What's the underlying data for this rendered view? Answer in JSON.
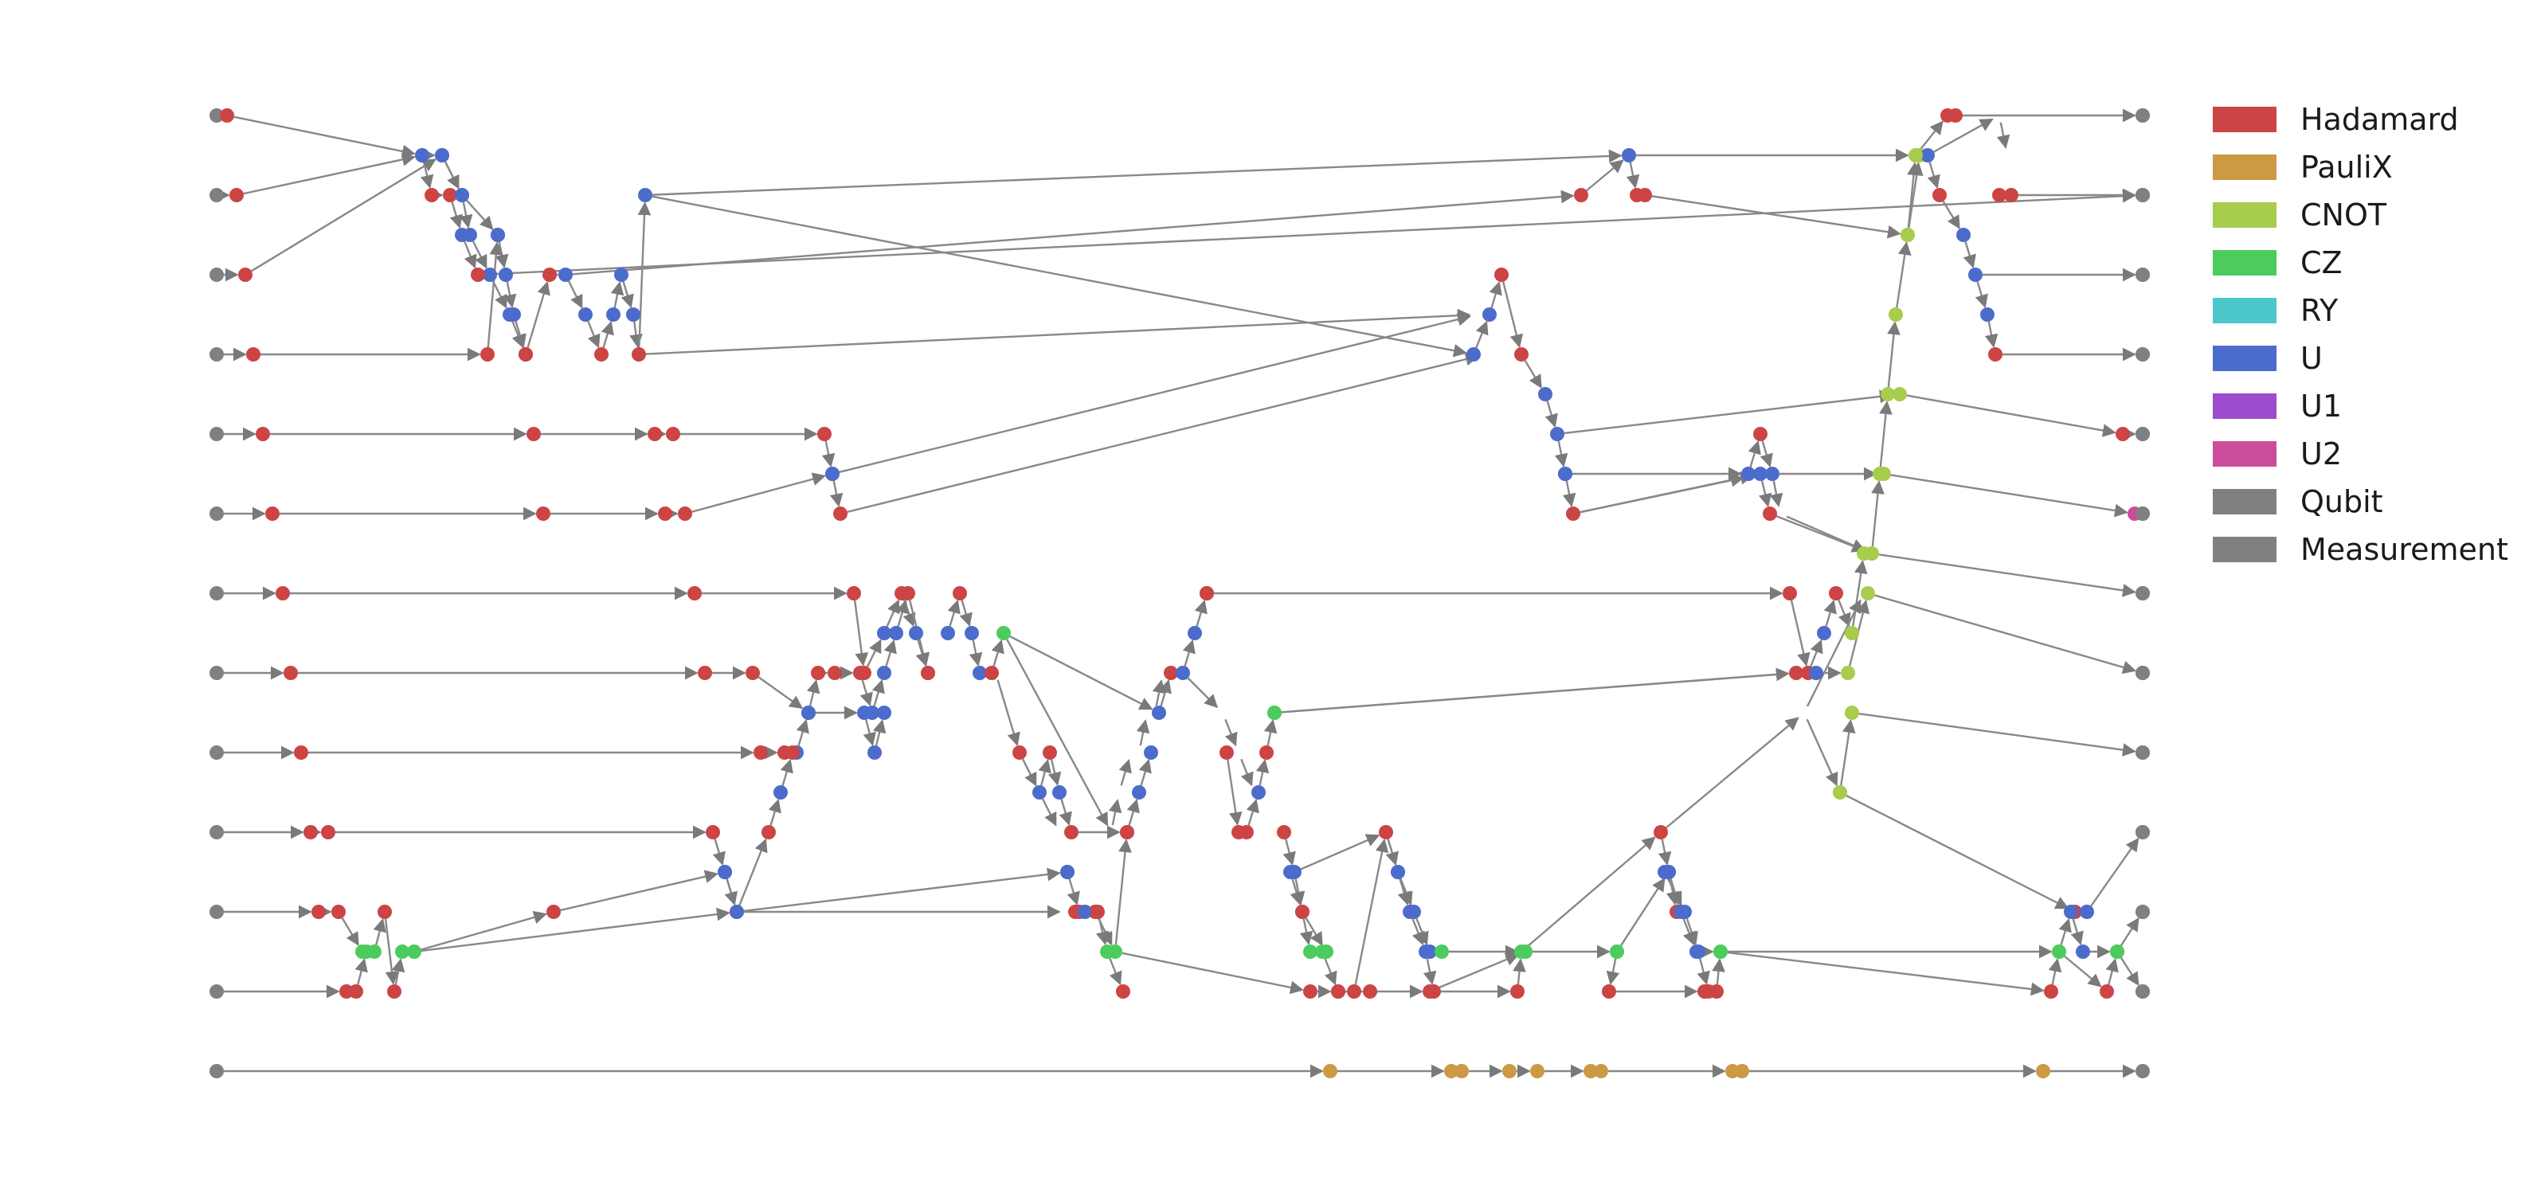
{
  "legend": [
    {
      "label": "Hadamard",
      "color": "#cc4444"
    },
    {
      "label": "PauliX",
      "color": "#cc9944"
    },
    {
      "label": "CNOT",
      "color": "#a8cc4c"
    },
    {
      "label": "CZ",
      "color": "#4ccc5c"
    },
    {
      "label": "RY",
      "color": "#4cc8cc"
    },
    {
      "label": "U",
      "color": "#4c6ccc"
    },
    {
      "label": "U1",
      "color": "#9c4ccc"
    },
    {
      "label": "U2",
      "color": "#cc4c9c"
    },
    {
      "label": "Qubit",
      "color": "#808080"
    },
    {
      "label": "Measurement",
      "color": "#808080"
    }
  ],
  "edge_color": "#888888",
  "qubit_lines": 13
}
